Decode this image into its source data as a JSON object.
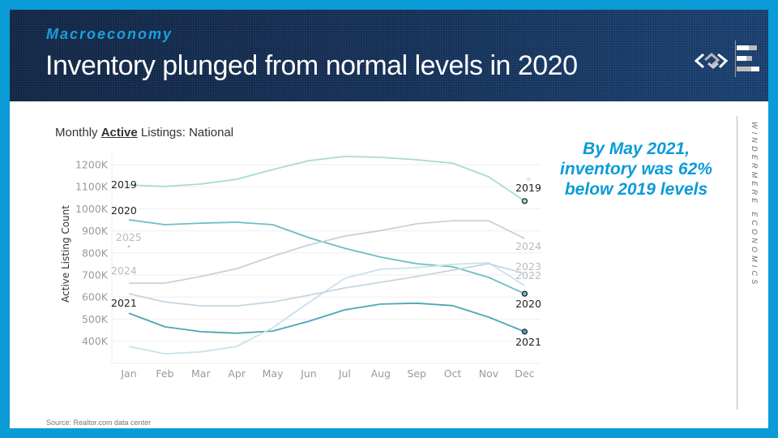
{
  "header": {
    "kicker": "Macroeconomy",
    "title": "Inventory plunged from normal levels in 2020",
    "logo": "windermere-logo-icon"
  },
  "chart_title": {
    "prefix": "Monthly ",
    "emphasis": "Active",
    "suffix": " Listings: National"
  },
  "callout": {
    "line1": "By May 2021,",
    "line2": "inventory was 62%",
    "line3": "below 2019 levels"
  },
  "side_label": "WINDERMERE ECONOMICS",
  "source": "Source: Realtor.com data center",
  "colors": {
    "frame": "#0b9bd7",
    "header_bg": "#16335c",
    "accent": "#0b9bd7"
  },
  "chart_data": {
    "type": "line",
    "title": "Monthly Active Listings: National",
    "xlabel": "",
    "ylabel": "Active Listing Count",
    "x": [
      "Jan",
      "Feb",
      "Mar",
      "Apr",
      "May",
      "Jun",
      "Jul",
      "Aug",
      "Sep",
      "Oct",
      "Nov",
      "Dec"
    ],
    "yticks": [
      "400K",
      "500K",
      "600K",
      "700K",
      "800K",
      "900K",
      "1000K",
      "1100K",
      "1200K"
    ],
    "ylim": [
      300,
      1260
    ],
    "unit": "thousands",
    "grid": true,
    "series": [
      {
        "name": "2019",
        "color": "#a8dccb",
        "label_start": true,
        "label_end": true,
        "end_marker": true,
        "values": [
          1108,
          1101,
          1112,
          1134,
          1178,
          1218,
          1237,
          1233,
          1222,
          1207,
          1145,
          1035
        ]
      },
      {
        "name": "2020",
        "color": "#6fbdc3",
        "label_start": true,
        "label_end": true,
        "end_marker": true,
        "values": [
          950,
          928,
          935,
          939,
          928,
          869,
          821,
          781,
          751,
          737,
          689,
          615
        ]
      },
      {
        "name": "2021",
        "color": "#4ba6b8",
        "label_start": true,
        "label_end": true,
        "end_marker": true,
        "values": [
          527,
          465,
          443,
          436,
          446,
          490,
          542,
          568,
          572,
          561,
          509,
          443
        ]
      },
      {
        "name": "2022",
        "color": "#c9e1ea",
        "label_start": false,
        "label_end": true,
        "end_marker": false,
        "values": [
          376,
          343,
          351,
          376,
          461,
          575,
          685,
          726,
          733,
          748,
          755,
          652
        ]
      },
      {
        "name": "2023",
        "color": "#c5d6e0",
        "label_start": false,
        "label_end": true,
        "end_marker": false,
        "values": [
          615,
          578,
          560,
          560,
          578,
          608,
          641,
          667,
          693,
          722,
          751,
          707
        ]
      },
      {
        "name": "2024",
        "color": "#c8d0dc",
        "label_start": true,
        "label_end": true,
        "end_marker": false,
        "values": [
          663,
          663,
          693,
          729,
          785,
          836,
          876,
          901,
          932,
          946,
          946,
          865
        ]
      },
      {
        "name": "2025",
        "color": "#c8ccd4",
        "label_start": true,
        "label_end": false,
        "end_marker": false,
        "values": [
          829
        ]
      }
    ],
    "annotation_marker": {
      "month": "Dec",
      "value": 1134,
      "color": "#e0cf9a"
    }
  }
}
